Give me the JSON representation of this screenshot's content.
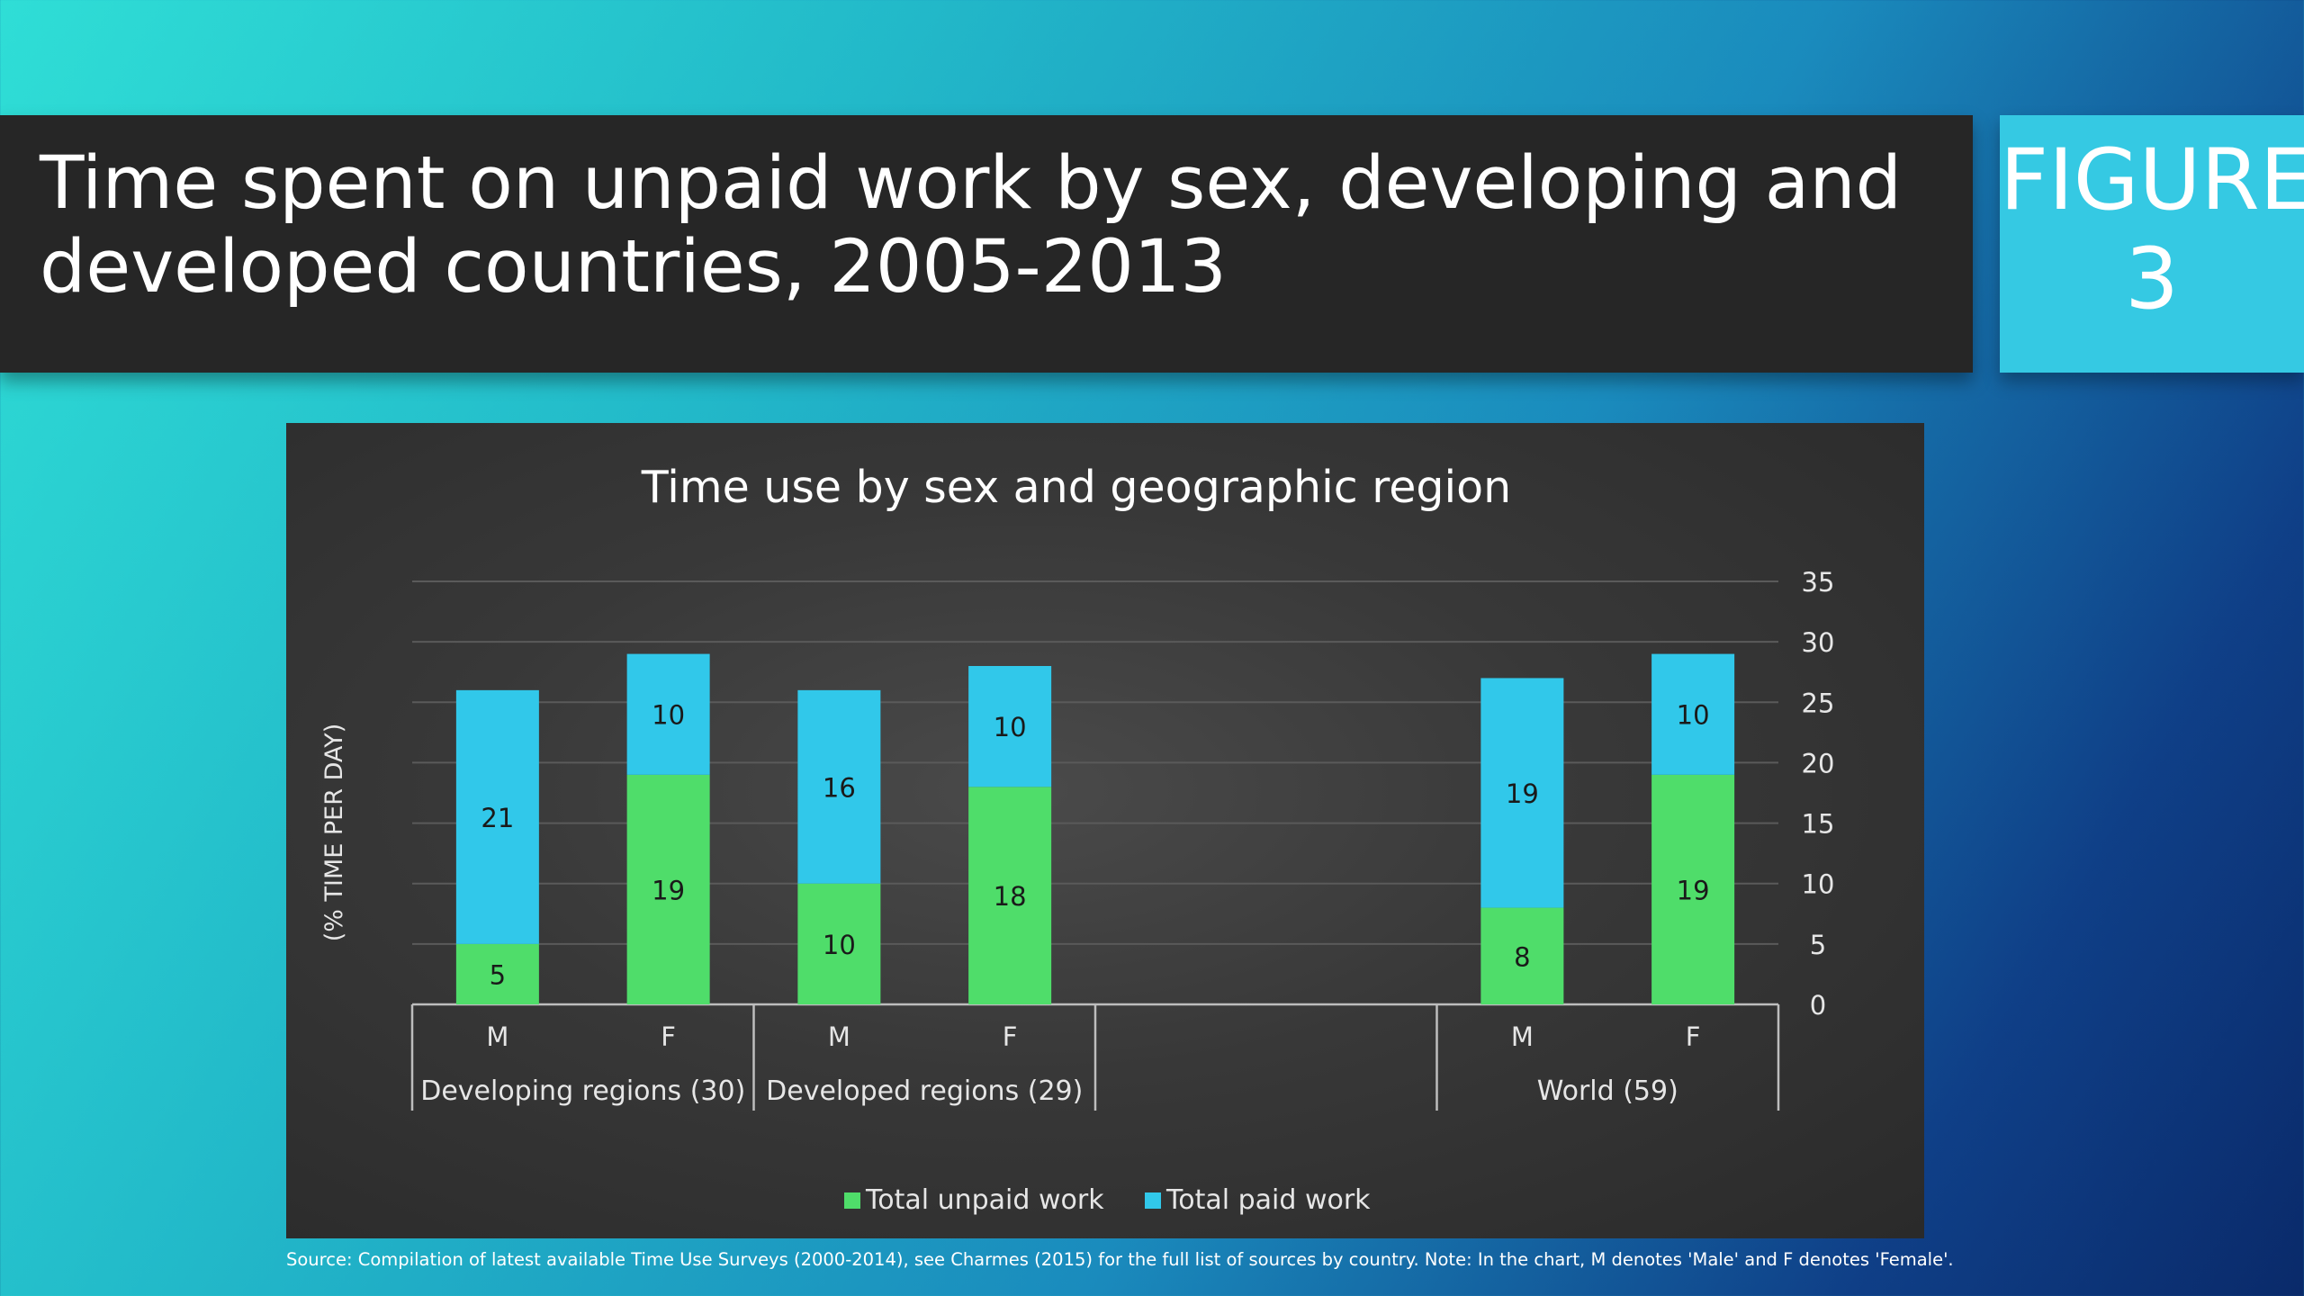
{
  "slide": {
    "title_line1": "Time spent on unpaid work by sex, developing and",
    "title_line2": "developed countries, 2005-2013",
    "figure_label": "FIGURE",
    "figure_number": "3",
    "source": "Source:  Compilation of latest available Time Use Surveys (2000-2014), see Charmes (2015) for the full list of sources by country. Note: In the chart, M denotes 'Male' and F denotes 'Female'."
  },
  "colors": {
    "unpaid": "#4fdd6a",
    "paid": "#31c8ea",
    "grid": "#5a5a5a",
    "axis_text": "#e6e6e6"
  },
  "chart_data": {
    "type": "bar",
    "stacked": true,
    "title": "Time use by sex and geographic region",
    "ylabel": "(% TIME PER DAY)",
    "ylim": [
      0,
      35
    ],
    "yticks": [
      "0",
      "5",
      "10",
      "15",
      "20",
      "25",
      "30",
      "35"
    ],
    "y_axis_side": "right",
    "grid": true,
    "legend_position": "bottom",
    "groups": [
      {
        "label": "Developing regions (30)",
        "categories": [
          "M",
          "F"
        ]
      },
      {
        "label": "Developed regions (29)",
        "categories": [
          "M",
          "F"
        ]
      },
      {
        "label": "",
        "categories": []
      },
      {
        "label": "World (59)",
        "categories": [
          "M",
          "F"
        ]
      }
    ],
    "categories": [
      "M",
      "F",
      "M",
      "F",
      "M",
      "F"
    ],
    "series": [
      {
        "name": "Total unpaid work",
        "values": [
          5,
          19,
          10,
          18,
          8,
          19
        ],
        "color": "#4fdd6a"
      },
      {
        "name": "Total paid work",
        "values": [
          21,
          10,
          16,
          10,
          19,
          10
        ],
        "color": "#31c8ea"
      }
    ]
  }
}
